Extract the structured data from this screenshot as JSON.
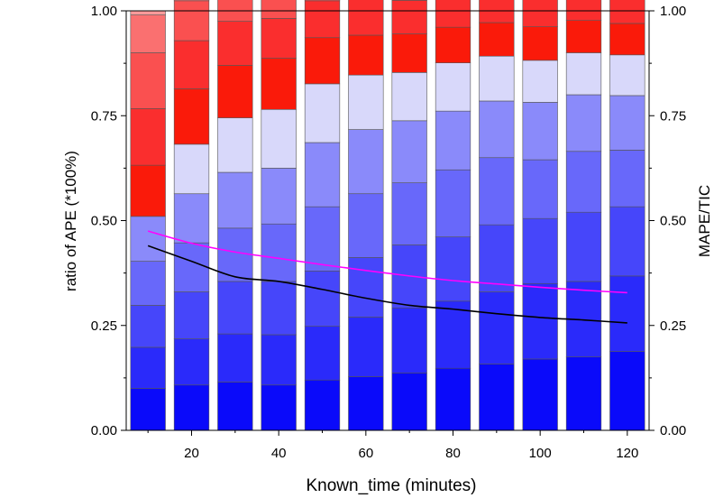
{
  "chart_data": {
    "type": "bar",
    "stacked": true,
    "xlabel": "Known_time (minutes)",
    "ylabel": "ratio of APE (*100%)",
    "y2label": "MAPE/TIC",
    "xlim": [
      5,
      125
    ],
    "ylim": [
      0,
      1
    ],
    "y2lim": [
      0,
      1
    ],
    "x_ticks": [
      20,
      40,
      60,
      80,
      100,
      120
    ],
    "y_ticks": [
      "0.00",
      "0.25",
      "0.50",
      "0.75",
      "1.00"
    ],
    "y2_ticks": [
      "0.00",
      "0.25",
      "0.50",
      "0.75",
      "1.00"
    ],
    "grid": false,
    "x": [
      10,
      20,
      30,
      40,
      50,
      60,
      70,
      80,
      90,
      100,
      110,
      120
    ],
    "stack_colors": [
      "#0a0afa",
      "#2a2afa",
      "#4646fa",
      "#6868fa",
      "#8a8afa",
      "#a8a8fa",
      "#d8d8fa",
      "#fa1a0a",
      "#fa2e2e",
      "#fa5050",
      "#fa7070",
      "#fa9a9a"
    ],
    "series": [
      {
        "values": [
          0.1,
          0.108,
          0.115,
          0.108,
          0.12,
          0.128,
          0.137,
          0.148,
          0.158,
          0.17,
          0.175,
          0.188
        ]
      },
      {
        "values": [
          0.098,
          0.11,
          0.115,
          0.12,
          0.128,
          0.142,
          0.155,
          0.16,
          0.172,
          0.18,
          0.18,
          0.18
        ]
      },
      {
        "values": [
          0.1,
          0.112,
          0.125,
          0.127,
          0.132,
          0.142,
          0.15,
          0.153,
          0.16,
          0.155,
          0.165,
          0.165
        ]
      },
      {
        "values": [
          0.105,
          0.117,
          0.127,
          0.137,
          0.153,
          0.152,
          0.148,
          0.16,
          0.16,
          0.14,
          0.145,
          0.135
        ]
      },
      {
        "values": [
          0.107,
          0.117,
          0.133,
          0.133,
          0.153,
          0.153,
          0.148,
          0.14,
          0.135,
          0.137,
          0.135,
          0.13
        ]
      },
      {
        "values": [
          0.0,
          0.0,
          0.0,
          0.0,
          0.0,
          0.0,
          0.0,
          0.0,
          0.0,
          0.0,
          0.0,
          0.0
        ]
      },
      {
        "values": [
          0.0,
          0.118,
          0.13,
          0.14,
          0.14,
          0.13,
          0.115,
          0.115,
          0.107,
          0.1,
          0.1,
          0.097
        ]
      },
      {
        "values": [
          0.122,
          0.132,
          0.125,
          0.122,
          0.11,
          0.095,
          0.092,
          0.085,
          0.08,
          0.08,
          0.077,
          0.075
        ]
      },
      {
        "values": [
          0.135,
          0.115,
          0.105,
          0.095,
          0.088,
          0.085,
          0.08,
          0.078,
          0.077,
          0.073,
          0.067,
          0.065
        ]
      },
      {
        "values": [
          0.133,
          0.095,
          0.08,
          0.085,
          0.085,
          0.08,
          0.075,
          0.07,
          0.068,
          0.065,
          0.055,
          0.05
        ]
      },
      {
        "values": [
          0.09,
          0.09,
          0.08,
          0.073,
          0.073,
          0.07,
          0.068,
          0.058,
          0.055,
          0.055,
          0.06,
          0.055
        ]
      },
      {
        "values": [
          0.01,
          0.011,
          0.01,
          0.01,
          0.011,
          0.013,
          0.012,
          0.013,
          0.013,
          0.014,
          0.014,
          0.015
        ]
      }
    ],
    "lines": [
      {
        "color": "#000000",
        "values": [
          0.44,
          0.403,
          0.366,
          0.355,
          0.336,
          0.315,
          0.298,
          0.289,
          0.278,
          0.269,
          0.263,
          0.256
        ]
      },
      {
        "color": "#ff00ff",
        "values": [
          0.475,
          0.446,
          0.425,
          0.41,
          0.395,
          0.381,
          0.368,
          0.357,
          0.349,
          0.341,
          0.334,
          0.328
        ]
      }
    ]
  }
}
